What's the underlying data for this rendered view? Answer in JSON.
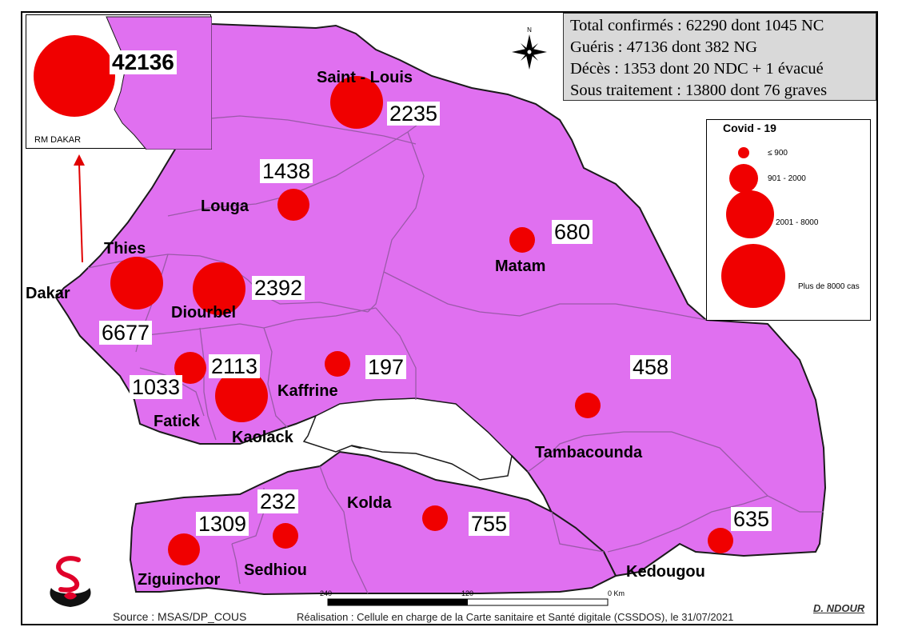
{
  "summary": {
    "line1": "Total confirmés : 62290 dont 1045 NC",
    "line2": "Guéris : 47136 dont  382 NG",
    "line3": "Décès : 1353 dont 20 NDC + 1 évacué",
    "line4": "Sous traitement : 13800  dont 76  graves"
  },
  "inset": {
    "label": "RM DAKAR",
    "value": "42136"
  },
  "legend": {
    "title": "Covid - 19",
    "items": [
      {
        "label": "≤ 900"
      },
      {
        "label": "901 - 2000"
      },
      {
        "label": "2001 - 8000"
      },
      {
        "label": "Plus de 8000 cas"
      }
    ]
  },
  "regions": {
    "dakar": {
      "name": "Dakar"
    },
    "thies": {
      "name": "Thies",
      "value": "6677"
    },
    "diourbel": {
      "name": "Diourbel",
      "value": "2392"
    },
    "saint_louis": {
      "name": "Saint - Louis",
      "value": "2235"
    },
    "louga": {
      "name": "Louga",
      "value": "1438"
    },
    "matam": {
      "name": "Matam",
      "value": "680"
    },
    "fatick": {
      "name": "Fatick",
      "value": "1033"
    },
    "kaolack": {
      "name": "Kaolack",
      "value": "2113"
    },
    "kaffrine": {
      "name": "Kaffrine",
      "value": "197"
    },
    "tambacounda": {
      "name": "Tambacounda",
      "value": "458"
    },
    "kolda": {
      "name": "Kolda",
      "value": "755"
    },
    "sedhiou": {
      "name": "Sedhiou",
      "value": "232"
    },
    "ziguinchor": {
      "name": "Ziguinchor",
      "value": "1309"
    },
    "kedougou": {
      "name": "Kedougou",
      "value": "635"
    }
  },
  "scale": {
    "left": "240",
    "mid": "120",
    "right": "0 Km"
  },
  "footer": {
    "source": "Source : MSAS/DP_COUS",
    "realisation": "Réalisation : Cellule en charge de la Carte sanitaire et Santé digitale (CSSDOS), le 31/07/2021",
    "author": "D. NDOUR"
  },
  "colors": {
    "region_fill": "#e070f0",
    "bubble": "#f00000",
    "border": "#9a5aa8"
  },
  "icons": {
    "compass": "north-arrow-icon",
    "logo": "ministry-logo-icon",
    "pointer": "red-arrow-icon"
  }
}
